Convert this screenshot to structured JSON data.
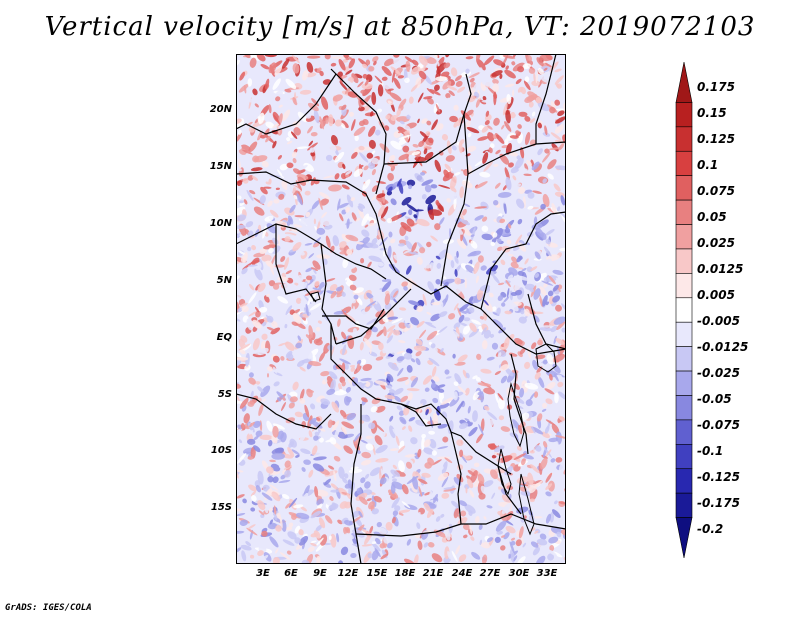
{
  "title": "Vertical velocity [m/s] at 850hPa, VT: 2019072103",
  "credit": "GrADS: IGES/COLA",
  "map": {
    "region": "Central Africa",
    "lat_ticks": [
      "20N",
      "15N",
      "10N",
      "5N",
      "EQ",
      "5S",
      "10S",
      "15S"
    ],
    "lon_ticks": [
      "3E",
      "6E",
      "9E",
      "12E",
      "15E",
      "18E",
      "21E",
      "24E",
      "27E",
      "30E",
      "33E"
    ],
    "field": "vertical velocity",
    "negative_color": "#3c3cc8",
    "positive_color": "#c82828"
  },
  "colorbar": {
    "labels": [
      "0.175",
      "0.15",
      "0.125",
      "0.1",
      "0.075",
      "0.05",
      "0.025",
      "0.0125",
      "0.005",
      "-0.005",
      "-0.0125",
      "-0.025",
      "-0.05",
      "-0.075",
      "-0.1",
      "-0.125",
      "-0.175",
      "-0.2"
    ],
    "colors": [
      "#a01818",
      "#b82020",
      "#c83030",
      "#d84040",
      "#e06060",
      "#e88080",
      "#f0a0a0",
      "#f8c8c8",
      "#fde8e8",
      "#ffffff",
      "#e8e8fc",
      "#c8c8f4",
      "#a8a8ec",
      "#8888e0",
      "#6060d0",
      "#4040c0",
      "#2828b0",
      "#1a1a98",
      "#0e0e80"
    ]
  }
}
